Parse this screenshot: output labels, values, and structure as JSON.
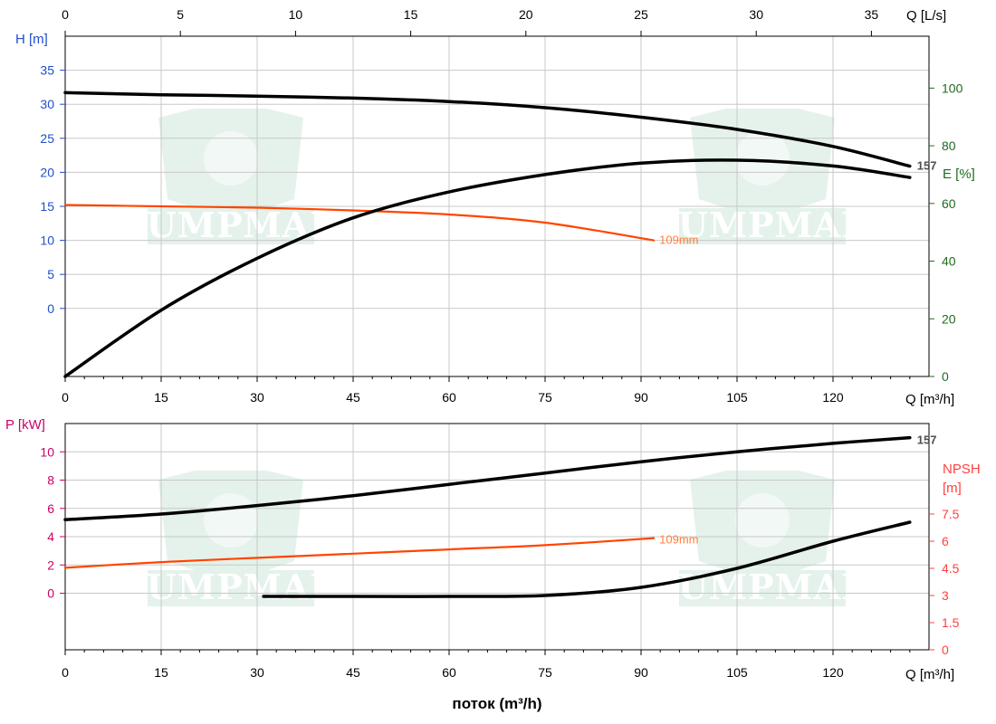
{
  "chart_data": [
    {
      "type": "line",
      "panel": "head-efficiency",
      "x_unit_label": "Q [m³/h]",
      "x_top_unit_label": "Q [L/s]",
      "ylabel": "H [m]",
      "ylabel2": "E [%]",
      "xlim": [
        0,
        135
      ],
      "ylim": [
        -10,
        40
      ],
      "y2lim": [
        0,
        118
      ],
      "x_ticks": [
        0,
        15,
        30,
        45,
        60,
        75,
        90,
        105,
        120
      ],
      "x_top_ticks": [
        0,
        5,
        10,
        15,
        20,
        25,
        30,
        35
      ],
      "y_ticks": [
        0,
        5,
        10,
        15,
        20,
        25,
        30,
        35
      ],
      "y2_ticks": [
        0,
        20,
        40,
        60,
        80,
        100
      ],
      "grid": true,
      "series": [
        {
          "name": "157",
          "axis": "H",
          "color": "#000000",
          "x": [
            0,
            15,
            30,
            45,
            60,
            75,
            90,
            105,
            120,
            132
          ],
          "y": [
            31.7,
            31.4,
            31.2,
            30.9,
            30.4,
            29.5,
            28.1,
            26.3,
            23.8,
            20.9
          ]
        },
        {
          "name": "109mm",
          "axis": "H",
          "color": "#ff4500",
          "x": [
            0,
            15,
            30,
            45,
            60,
            75,
            92
          ],
          "y": [
            15.2,
            15.0,
            14.8,
            14.4,
            13.8,
            12.6,
            10.0
          ]
        },
        {
          "axis": "E",
          "color": "#000000",
          "x": [
            0,
            15,
            30,
            45,
            60,
            75,
            90,
            105,
            120,
            132
          ],
          "y": [
            0,
            23,
            41,
            55,
            64,
            70,
            74,
            75,
            73,
            69
          ]
        }
      ]
    },
    {
      "type": "line",
      "panel": "power-npsh",
      "x_unit_label": "Q [m³/h]",
      "ylabel": "P [kW]",
      "ylabel2_line1": "NPSH",
      "ylabel2_line2": "[m]",
      "xlim": [
        0,
        135
      ],
      "ylim": [
        -4,
        12
      ],
      "y2lim": [
        0,
        12.5
      ],
      "x_ticks": [
        0,
        15,
        30,
        45,
        60,
        75,
        90,
        105,
        120
      ],
      "y_ticks": [
        0,
        2,
        4,
        6,
        8,
        10
      ],
      "y2_ticks": [
        0,
        1.5,
        3,
        4.5,
        6,
        7.5
      ],
      "grid": true,
      "series": [
        {
          "name": "157",
          "axis": "P",
          "color": "#000000",
          "x": [
            0,
            15,
            30,
            45,
            60,
            75,
            90,
            105,
            120,
            132
          ],
          "y": [
            5.2,
            5.6,
            6.2,
            6.9,
            7.7,
            8.5,
            9.3,
            10.0,
            10.6,
            11.0
          ]
        },
        {
          "name": "109mm",
          "axis": "P",
          "color": "#ff4500",
          "x": [
            0,
            15,
            30,
            45,
            60,
            75,
            92
          ],
          "y": [
            1.8,
            2.2,
            2.5,
            2.8,
            3.1,
            3.4,
            3.9
          ]
        },
        {
          "axis": "NPSH",
          "color": "#000000",
          "x": [
            31,
            45,
            60,
            75,
            90,
            105,
            120,
            132
          ],
          "y": [
            2.95,
            2.95,
            2.95,
            3.0,
            3.45,
            4.5,
            6.0,
            7.05
          ]
        }
      ]
    }
  ],
  "xtitle": "поток (m³/h)",
  "watermark": "PUMPMAN",
  "colors": {
    "grid": "#c8c8c8",
    "axis": "#000000",
    "h_axis": "#1f4fcc",
    "e_axis": "#1f6b1f",
    "p_axis": "#cc0066",
    "npsh_axis": "#ff4040",
    "curve_157_label": "#505050",
    "curve_109_label": "#ff8040",
    "watermark": "#cfe8dc"
  }
}
